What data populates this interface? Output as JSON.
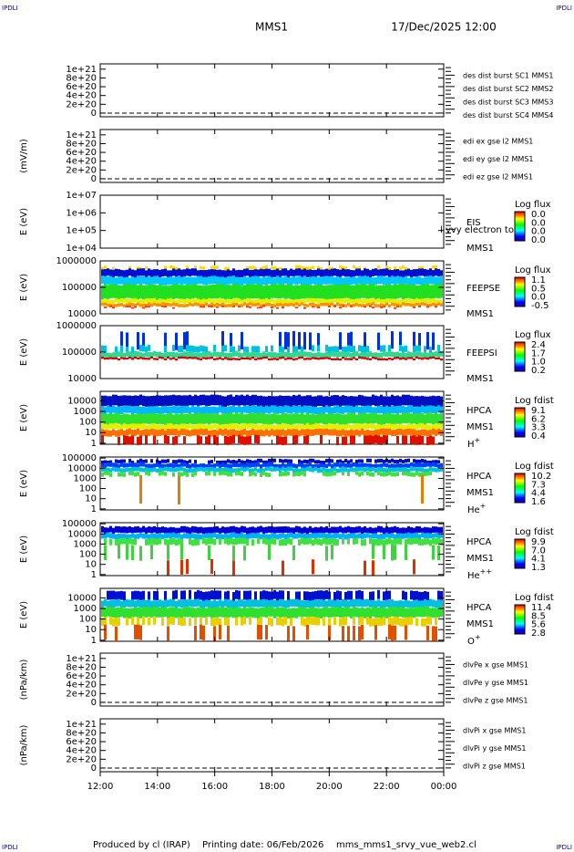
{
  "header": {
    "corner_left": "IPDLI",
    "corner_right": "IPDLI",
    "title": "MMS1",
    "date": "17/Dec/2025 12:00"
  },
  "panels": [
    {
      "y_label": "",
      "y_ticks": [
        "1e+21",
        "8e+20",
        "6e+20",
        "4e+20",
        "2e+20",
        "0"
      ],
      "legend": [
        {
          "text": "des dist burst SC1 MMS1",
          "color": "#0000aa"
        },
        {
          "text": "des dist burst SC2 MMS2",
          "color": "#cc00cc"
        },
        {
          "text": "des dist burst SC3 MMS3",
          "color": "#cc0000"
        },
        {
          "text": "des dist burst SC4 MMS4",
          "color": "#00bb00"
        }
      ]
    },
    {
      "y_label": "(mV/m)",
      "y_ticks": [
        "1e+21",
        "8e+20",
        "6e+20",
        "4e+20",
        "2e+20",
        "0"
      ],
      "legend": [
        {
          "text": "edi ex gse l2 MMS1",
          "color": "#cc0000"
        },
        {
          "text": "edi ey gse l2 MMS1",
          "color": "#00bb00"
        },
        {
          "text": "edi ez gse l2 MMS1",
          "color": "#0000aa"
        }
      ]
    },
    {
      "y_label": "E (eV)",
      "y_ticks": [
        "1e+07",
        "1e+06",
        "1e+05",
        "1e+04"
      ],
      "labels": [
        "EIS",
        "MMS1"
      ],
      "overlay": "l vvy electron to",
      "colorbar": {
        "title": "Log flux",
        "ticks": [
          "0.0",
          "0.0",
          "0.0",
          "0.0"
        ]
      }
    },
    {
      "y_label": "E (eV)",
      "y_ticks": [
        "1000000",
        "100000",
        "10000"
      ],
      "labels": [
        "FEEPSE",
        "MMS1"
      ],
      "colorbar": {
        "title": "Log flux",
        "ticks": [
          "1.1",
          "0.5",
          "0.0",
          "-0.5"
        ]
      }
    },
    {
      "y_label": "E (eV)",
      "y_ticks": [
        "1000000",
        "100000",
        "10000"
      ],
      "labels": [
        "FEEPSI",
        "MMS1"
      ],
      "colorbar": {
        "title": "Log flux",
        "ticks": [
          "2.4",
          "1.7",
          "1.0",
          "0.2"
        ]
      }
    },
    {
      "y_label": "E (eV)",
      "y_ticks": [
        "10000",
        "1000",
        "100",
        "10",
        "1"
      ],
      "labels": [
        "HPCA",
        "MMS1"
      ],
      "species": {
        "name": "H",
        "charge": "+"
      },
      "colorbar": {
        "title": "Log fdist",
        "ticks": [
          "9.1",
          "6.2",
          "3.3",
          "0.4"
        ]
      }
    },
    {
      "y_label": "E (eV)",
      "y_ticks": [
        "100000",
        "10000",
        "1000",
        "100",
        "10",
        "1"
      ],
      "labels": [
        "HPCA",
        "MMS1"
      ],
      "species": {
        "name": "He",
        "charge": "+"
      },
      "colorbar": {
        "title": "Log fdist",
        "ticks": [
          "10.2",
          "7.3",
          "4.4",
          "1.6"
        ]
      }
    },
    {
      "y_label": "E (eV)",
      "y_ticks": [
        "100000",
        "10000",
        "1000",
        "100",
        "10",
        "1"
      ],
      "labels": [
        "HPCA",
        "MMS1"
      ],
      "species": {
        "name": "He",
        "charge": "++"
      },
      "colorbar": {
        "title": "Log fdist",
        "ticks": [
          "9.9",
          "7.0",
          "4.1",
          "1.3"
        ]
      }
    },
    {
      "y_label": "E (eV)",
      "y_ticks": [
        "10000",
        "1000",
        "100",
        "10",
        "1"
      ],
      "labels": [
        "HPCA",
        "MMS1"
      ],
      "species": {
        "name": "O",
        "charge": "+"
      },
      "colorbar": {
        "title": "Log fdist",
        "ticks": [
          "11.4",
          "8.5",
          "5.6",
          "2.8"
        ]
      }
    },
    {
      "y_label": "(nPa/km)",
      "y_ticks": [
        "1e+21",
        "8e+20",
        "6e+20",
        "4e+20",
        "2e+20",
        "0"
      ],
      "legend": [
        {
          "text": "dlvPe x gse MMS1",
          "color": "#cc0000"
        },
        {
          "text": "dlvPe y gse MMS1",
          "color": "#00bb00"
        },
        {
          "text": "dlvPe z gse MMS1",
          "color": "#0000aa"
        }
      ]
    },
    {
      "y_label": "(nPa/km)",
      "y_ticks": [
        "1e+21",
        "8e+20",
        "6e+20",
        "4e+20",
        "2e+20",
        "0"
      ],
      "legend": [
        {
          "text": "dlvPi x gse MMS1",
          "color": "#cc0000"
        },
        {
          "text": "dlvPi y gse MMS1",
          "color": "#00bb00"
        },
        {
          "text": "dlvPi z gse MMS1",
          "color": "#0000aa"
        }
      ]
    }
  ],
  "x_axis": {
    "ticks": [
      "12:00",
      "14:00",
      "16:00",
      "18:00",
      "20:00",
      "22:00",
      "00:00"
    ]
  },
  "footer": {
    "producer": "Produced by cl (IRAP)",
    "printing": "Printing date: 06/Feb/2026",
    "file": "mms_mms1_srvy_vue_web2.cl"
  }
}
